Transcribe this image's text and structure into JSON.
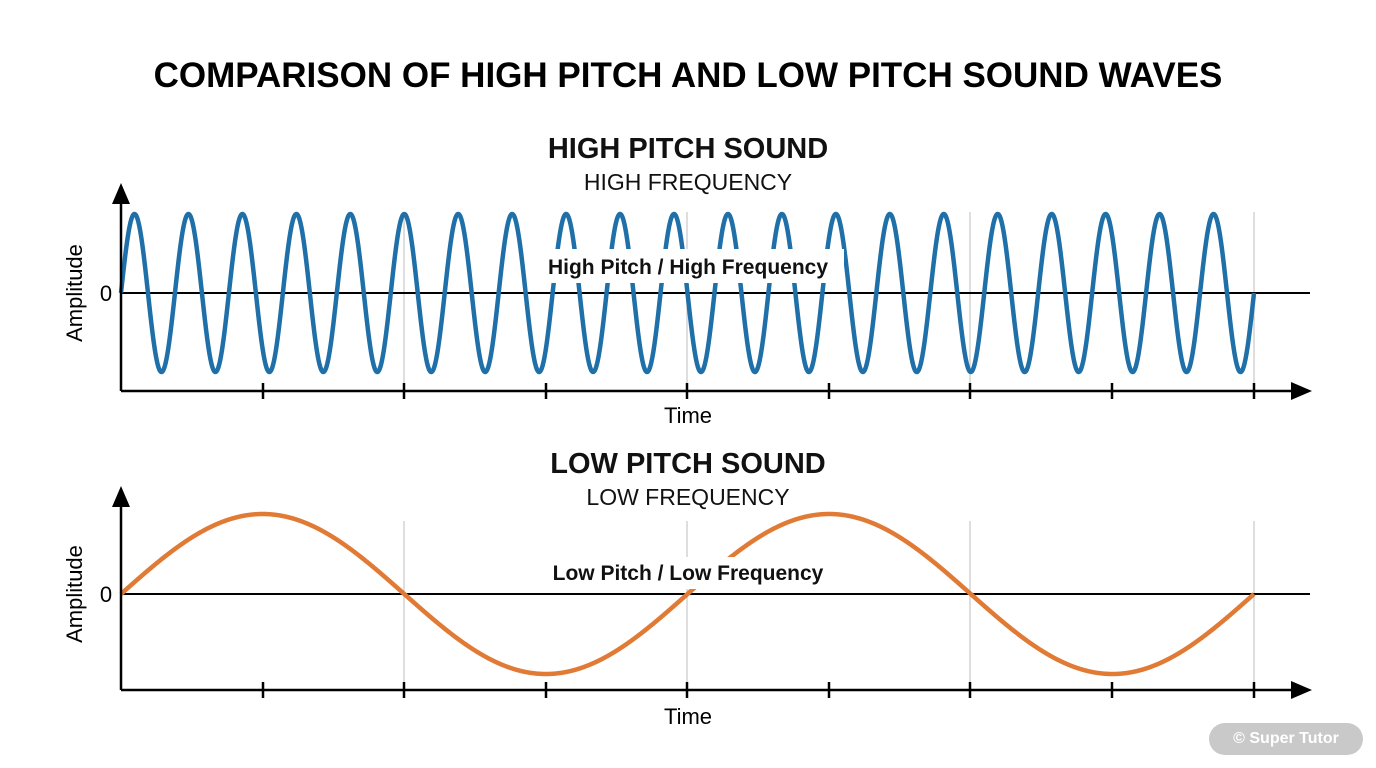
{
  "title": "COMPARISON OF HIGH PITCH AND LOW PITCH SOUND WAVES",
  "watermark": "© Super Tutor",
  "colors": {
    "high_wave": "#1f6fa8",
    "low_wave": "#e07a34",
    "axis": "#000000",
    "grid": "#c8c8c8",
    "watermark_bg": "#c9c9c9"
  },
  "panels": [
    {
      "heading": "HIGH PITCH SOUND",
      "subheading": "HIGH FREQUENCY",
      "wave_label": "High Pitch / High Frequency",
      "y_label": "Amplitude",
      "zero_label": "0",
      "x_label": "Time",
      "wave_color": "#1f6fa8",
      "cycles": 21
    },
    {
      "heading": "LOW PITCH SOUND",
      "subheading": "LOW FREQUENCY",
      "wave_label": "Low Pitch / Low Frequency",
      "y_label": "Amplitude",
      "zero_label": "0",
      "x_label": "Time",
      "wave_color": "#e07a34",
      "cycles": 2
    }
  ]
}
